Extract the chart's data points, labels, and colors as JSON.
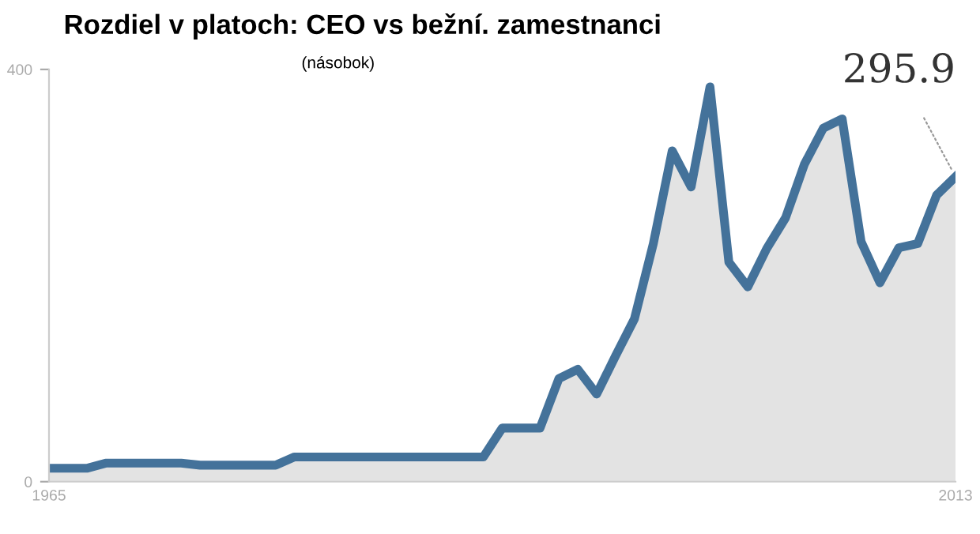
{
  "chart_data": {
    "type": "area",
    "title": "Rozdiel v platoch: CEO vs bežní. zamestnanci",
    "subtitle": "(násobok)",
    "x": [
      1965,
      1966,
      1967,
      1968,
      1969,
      1970,
      1971,
      1972,
      1973,
      1974,
      1975,
      1976,
      1977,
      1978,
      1979,
      1980,
      1981,
      1982,
      1983,
      1984,
      1985,
      1986,
      1987,
      1988,
      1989,
      1990,
      1991,
      1992,
      1993,
      1994,
      1995,
      1996,
      1997,
      1998,
      1999,
      2000,
      2001,
      2002,
      2003,
      2004,
      2005,
      2006,
      2007,
      2008,
      2009,
      2010,
      2011,
      2012,
      2013
    ],
    "series": [
      {
        "color": "#44729a",
        "values": [
          13,
          13,
          13,
          18,
          18,
          18,
          18,
          18,
          16,
          16,
          16,
          16,
          16,
          24,
          24,
          24,
          24,
          24,
          24,
          24,
          24,
          24,
          24,
          24,
          52,
          52,
          52,
          100,
          109,
          85,
          122,
          158,
          231,
          321,
          286,
          383,
          213,
          189,
          226,
          256,
          308,
          343,
          352,
          233,
          193,
          227,
          231,
          278,
          295.9
        ]
      }
    ],
    "xlim": [
      1965,
      2013
    ],
    "xticks": [
      1965,
      2013
    ],
    "ylim": [
      0,
      400
    ],
    "yticks": [
      0,
      400
    ],
    "grid": false,
    "marker": "none",
    "line_style": "solid",
    "annotations": [
      {
        "text": "295.9",
        "x": 2013,
        "y": 295.9
      }
    ]
  }
}
